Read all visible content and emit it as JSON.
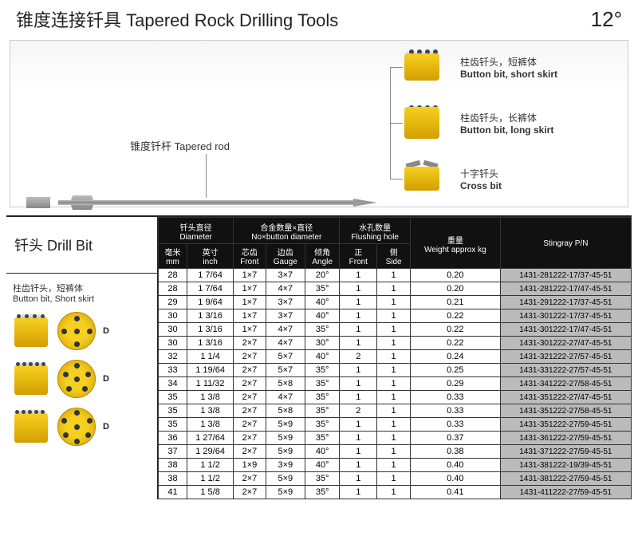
{
  "header": {
    "title_cn": "锥度连接钎具",
    "title_en": "Tapered Rock Drilling Tools",
    "angle": "12°"
  },
  "diagram": {
    "rod_label_cn": "锥度钎杆",
    "rod_label_en": "Tapered rod",
    "bits": [
      {
        "cn": "柱齿钎头，短裤体",
        "en": "Button bit, short skirt"
      },
      {
        "cn": "柱齿钎头，长裤体",
        "en": "Button bit, long skirt"
      },
      {
        "cn": "十字钎头",
        "en": "Cross bit"
      }
    ]
  },
  "table": {
    "left_title_cn": "钎头",
    "left_title_en": "Drill Bit",
    "left_sub_cn": "柱齿钎头，短裤体",
    "left_sub_en": "Button bit, Short skirt",
    "d_label": "D",
    "header_groups": [
      {
        "cn": "钎头直径",
        "en": "Diameter",
        "cols": 2
      },
      {
        "cn": "合金数量×直径",
        "en": "No×button diameter",
        "cols": 3
      },
      {
        "cn": "水孔数量",
        "en": "Flushing hole",
        "cols": 2
      },
      {
        "cn": "重量",
        "en": "Weight approx kg",
        "cols": 1
      },
      {
        "cn": "",
        "en": "Stingray P/N",
        "cols": 1
      }
    ],
    "sub_headers": [
      {
        "cn": "毫米",
        "en": "mm"
      },
      {
        "cn": "英寸",
        "en": "inch"
      },
      {
        "cn": "芯齿",
        "en": "Front"
      },
      {
        "cn": "边齿",
        "en": "Gauge"
      },
      {
        "cn": "倾角",
        "en": "Angle"
      },
      {
        "cn": "正",
        "en": "Front"
      },
      {
        "cn": "侧",
        "en": "Side"
      }
    ],
    "rows": [
      [
        "28",
        "1 7/64",
        "1×7",
        "3×7",
        "20°",
        "1",
        "1",
        "0.20",
        "1431-281222-17/37-45-51"
      ],
      [
        "28",
        "1 7/64",
        "1×7",
        "4×7",
        "35°",
        "1",
        "1",
        "0.20",
        "1431-281222-17/47-45-51"
      ],
      [
        "29",
        "1 9/64",
        "1×7",
        "3×7",
        "40°",
        "1",
        "1",
        "0.21",
        "1431-291222-17/37-45-51"
      ],
      [
        "30",
        "1 3/16",
        "1×7",
        "3×7",
        "40°",
        "1",
        "1",
        "0.22",
        "1431-301222-17/37-45-51"
      ],
      [
        "30",
        "1 3/16",
        "1×7",
        "4×7",
        "35°",
        "1",
        "1",
        "0.22",
        "1431-301222-17/47-45-51"
      ],
      [
        "30",
        "1 3/16",
        "2×7",
        "4×7",
        "30°",
        "1",
        "1",
        "0.22",
        "1431-301222-27/47-45-51"
      ],
      [
        "32",
        "1 1/4",
        "2×7",
        "5×7",
        "40°",
        "2",
        "1",
        "0.24",
        "1431-321222-27/57-45-51"
      ],
      [
        "33",
        "1 19/64",
        "2×7",
        "5×7",
        "35°",
        "1",
        "1",
        "0.25",
        "1431-331222-27/57-45-51"
      ],
      [
        "34",
        "1 11/32",
        "2×7",
        "5×8",
        "35°",
        "1",
        "1",
        "0.29",
        "1431-341222-27/58-45-51"
      ],
      [
        "35",
        "1 3/8",
        "2×7",
        "4×7",
        "35°",
        "1",
        "1",
        "0.33",
        "1431-351222-27/47-45-51"
      ],
      [
        "35",
        "1 3/8",
        "2×7",
        "5×8",
        "35°",
        "2",
        "1",
        "0.33",
        "1431-351222-27/58-45-51"
      ],
      [
        "35",
        "1 3/8",
        "2×7",
        "5×9",
        "35°",
        "1",
        "1",
        "0.33",
        "1431-351222-27/59-45-51"
      ],
      [
        "36",
        "1 27/64",
        "2×7",
        "5×9",
        "35°",
        "1",
        "1",
        "0.37",
        "1431-361222-27/59-45-51"
      ],
      [
        "37",
        "1 29/64",
        "2×7",
        "5×9",
        "40°",
        "1",
        "1",
        "0.38",
        "1431-371222-27/59-45-51"
      ],
      [
        "38",
        "1 1/2",
        "1×9",
        "3×9",
        "40°",
        "1",
        "1",
        "0.40",
        "1431-381222-19/39-45-51"
      ],
      [
        "38",
        "1 1/2",
        "2×7",
        "5×9",
        "35°",
        "1",
        "1",
        "0.40",
        "1431-381222-27/59-45-51"
      ],
      [
        "41",
        "1 5/8",
        "2×7",
        "5×9",
        "35°",
        "1",
        "1",
        "0.41",
        "1431-411222-27/59-45-51"
      ]
    ]
  },
  "colors": {
    "bit_yellow": "#f5d020",
    "bit_yellow_dark": "#d49e00",
    "header_bg": "#111111",
    "pn_bg": "#bbbbbb"
  }
}
